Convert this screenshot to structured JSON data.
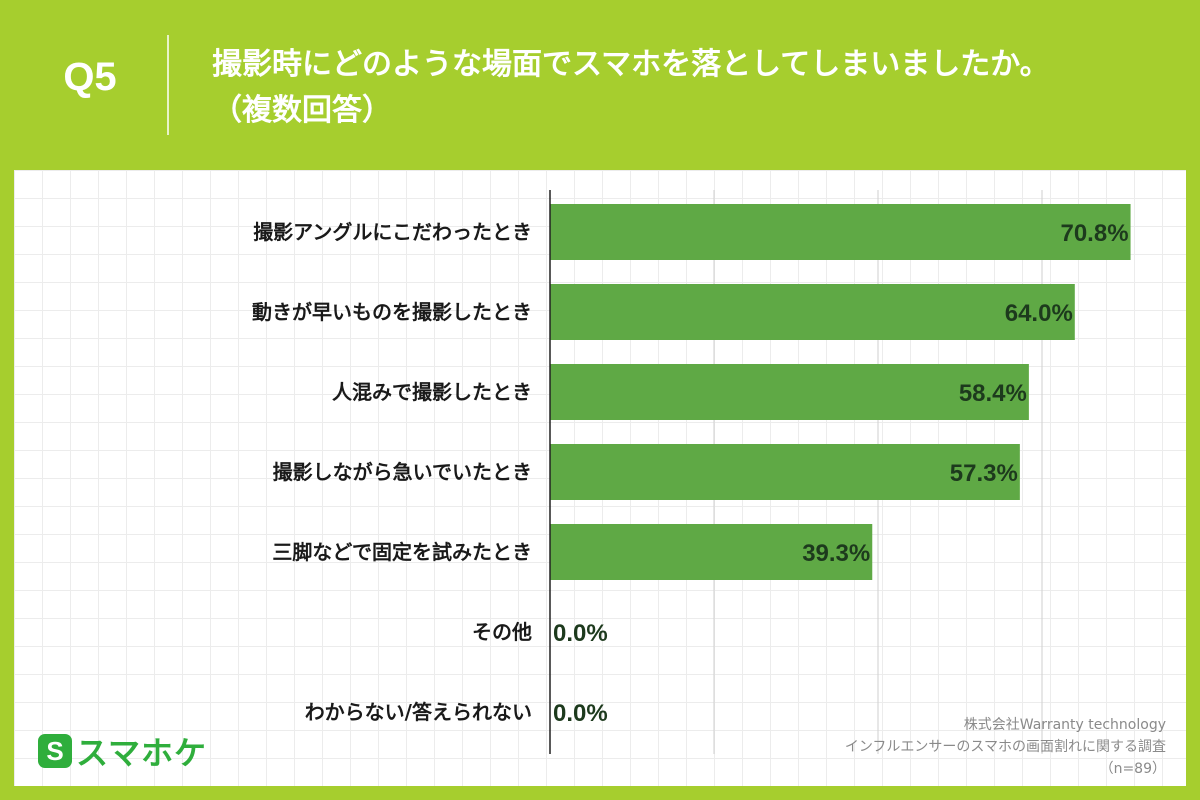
{
  "header": {
    "question_number": "Q5",
    "title_line1": "撮影時にどのような場面でスマホを落としてしまいましたか。",
    "title_line2": "（複数回答）"
  },
  "logo": {
    "mark": "S",
    "name": "スマホケ",
    "color": "#2fae3c"
  },
  "source": {
    "company": "株式会社Warranty technology",
    "survey": "インフルエンサーのスマホの画面割れに関する調査",
    "sample": "（n=89）"
  },
  "colors": {
    "background": "#a6ce2e",
    "bar": "#5fa945",
    "value_label": "#1d3a1d"
  },
  "chart_data": {
    "type": "bar",
    "orientation": "horizontal",
    "categories": [
      "撮影アングルにこだわったとき",
      "動きが早いものを撮影したとき",
      "人混みで撮影したとき",
      "撮影しながら急いでいたとき",
      "三脚などで固定を試みたとき",
      "その他",
      "わからない/答えられない"
    ],
    "values": [
      70.8,
      64.0,
      58.4,
      57.3,
      39.3,
      0.0,
      0.0
    ],
    "value_labels": [
      "70.8%",
      "64.0%",
      "58.4%",
      "57.3%",
      "39.3%",
      "0.0%",
      "0.0%"
    ],
    "xlim": [
      0,
      80
    ],
    "grid": true
  }
}
